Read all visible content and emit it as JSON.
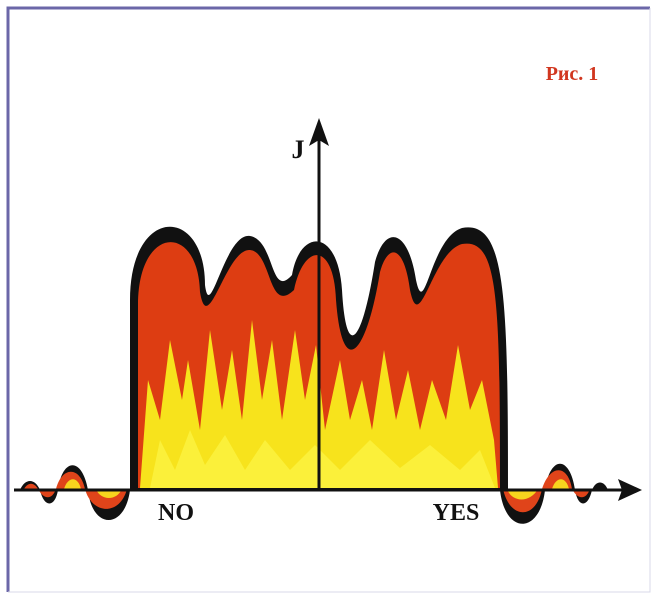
{
  "figure_label": "Рис. 1",
  "axis_label": "J",
  "labels": {
    "left": "NO",
    "right": "YES"
  }
}
